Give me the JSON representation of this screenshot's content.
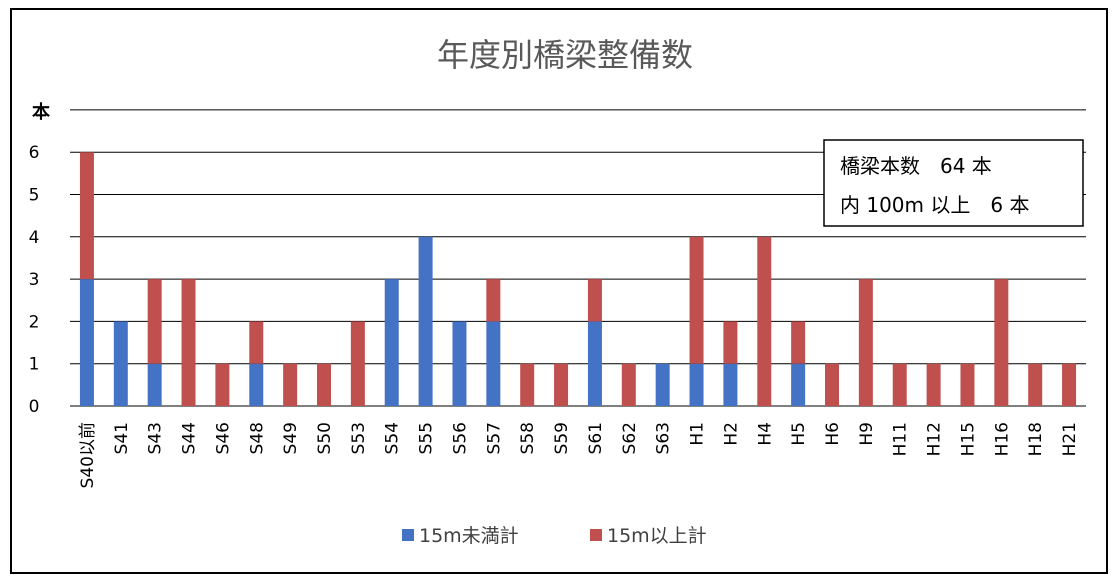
{
  "chart_data": {
    "type": "bar",
    "stacked": true,
    "title": "年度別橋梁整備数",
    "ylabel": "本",
    "xlabel": "",
    "ylim": [
      0,
      7
    ],
    "yticks": [
      0,
      1,
      2,
      3,
      4,
      5,
      6
    ],
    "grid": true,
    "legend_position": "bottom",
    "categories": [
      "S40以前",
      "S41",
      "S43",
      "S44",
      "S46",
      "S48",
      "S49",
      "S50",
      "S53",
      "S54",
      "S55",
      "S56",
      "S57",
      "S58",
      "S59",
      "S61",
      "S62",
      "S63",
      "H1",
      "H2",
      "H4",
      "H5",
      "H6",
      "H9",
      "H11",
      "H12",
      "H15",
      "H16",
      "H18",
      "H21"
    ],
    "series": [
      {
        "name": "15m未満計",
        "color": "#4472C4",
        "values": [
          3,
          2,
          1,
          0,
          0,
          1,
          0,
          0,
          0,
          3,
          4,
          2,
          2,
          0,
          0,
          2,
          0,
          1,
          1,
          1,
          0,
          1,
          0,
          0,
          0,
          0,
          0,
          0,
          0,
          0
        ]
      },
      {
        "name": "15m以上計",
        "color": "#C0504D",
        "values": [
          3,
          0,
          2,
          3,
          1,
          1,
          1,
          1,
          2,
          0,
          0,
          0,
          1,
          1,
          1,
          1,
          1,
          0,
          3,
          1,
          4,
          1,
          1,
          3,
          1,
          1,
          1,
          3,
          1,
          1
        ]
      }
    ],
    "annotation": {
      "line1": "橋梁本数　64 本",
      "line2": "内 100m 以上　6 本"
    }
  }
}
